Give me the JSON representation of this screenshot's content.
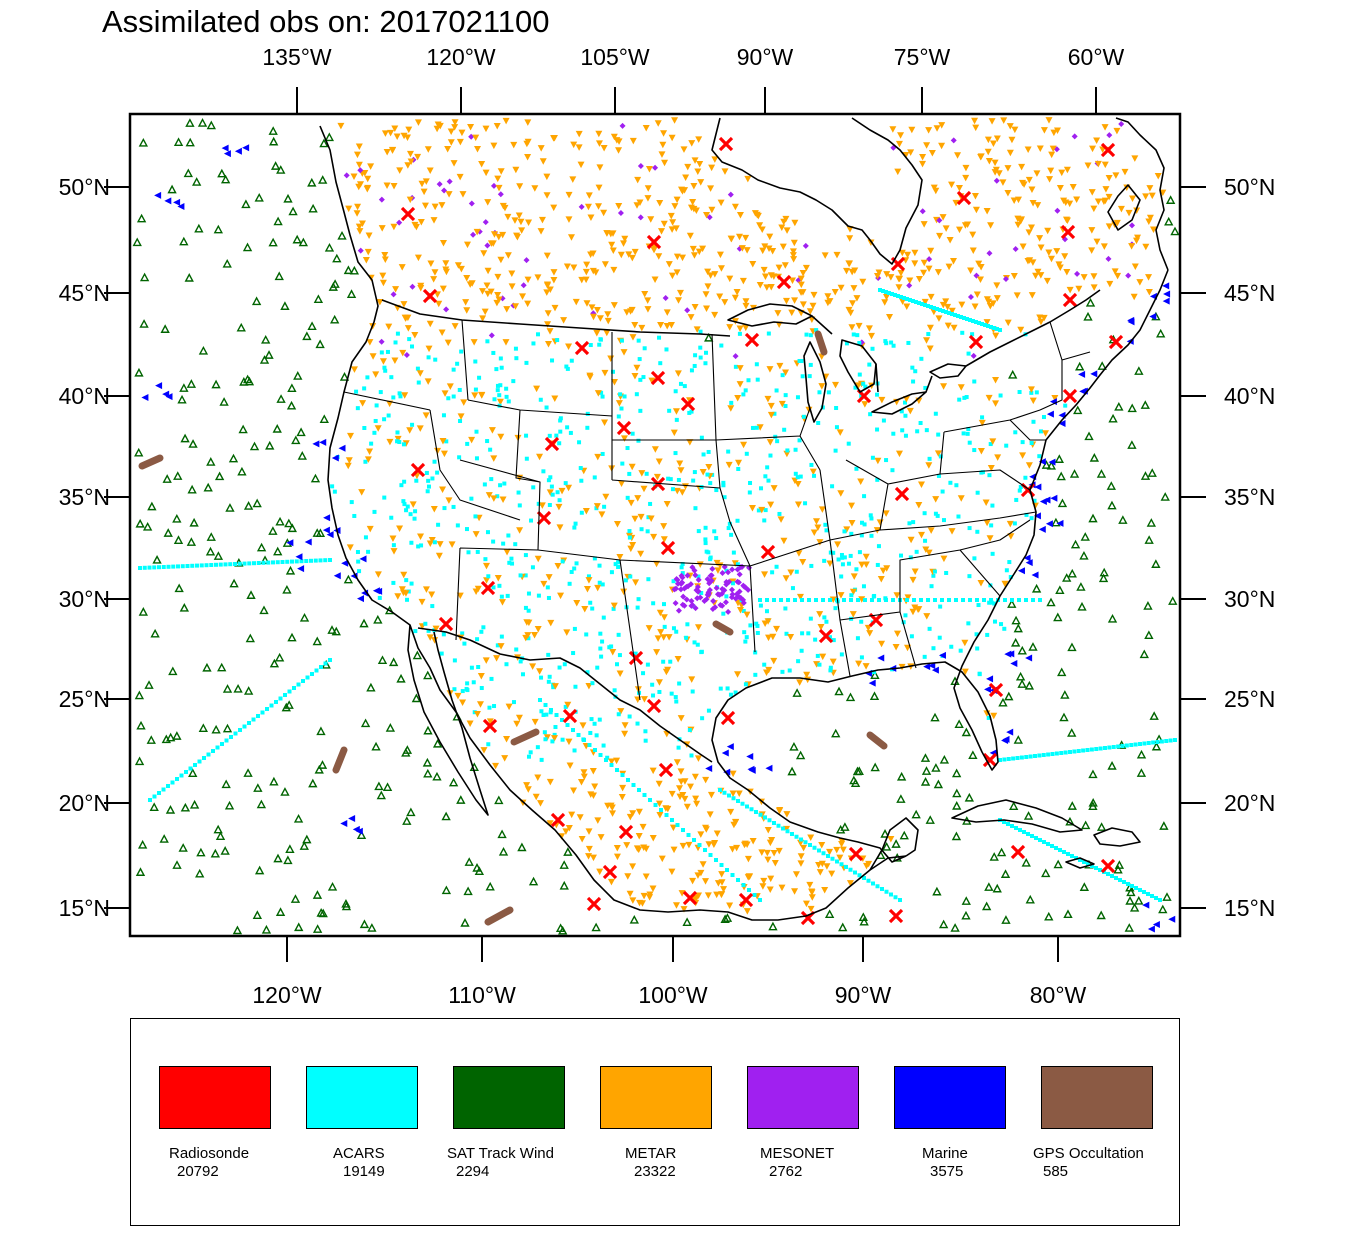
{
  "title": "Assimilated obs on: 2017021100",
  "top_lon_labels": [
    "135°W",
    "120°W",
    "105°W",
    "90°W",
    "75°W",
    "60°W"
  ],
  "bottom_lon_labels": [
    "120°W",
    "110°W",
    "100°W",
    "90°W",
    "80°W"
  ],
  "lat_labels": [
    "50°N",
    "45°N",
    "40°N",
    "35°N",
    "30°N",
    "25°N",
    "20°N",
    "15°N"
  ],
  "colors": {
    "radiosonde": "#ff0000",
    "acars": "#00ffff",
    "sat_track_wind": "#006400",
    "metar": "#ffa500",
    "mesonet": "#a020f0",
    "marine": "#0000ff",
    "gps_occultation": "#8b5a44"
  },
  "legend": [
    {
      "key": "radiosonde",
      "name": "Radiosonde",
      "count": "20792",
      "color": "#ff0000"
    },
    {
      "key": "acars",
      "name": "ACARS",
      "count": "19149",
      "color": "#00ffff"
    },
    {
      "key": "sat_track_wind",
      "name": "SAT Track Wind",
      "count": "2294",
      "color": "#006400"
    },
    {
      "key": "metar",
      "name": "METAR",
      "count": "23322",
      "color": "#ffa500"
    },
    {
      "key": "mesonet",
      "name": "MESONET",
      "count": "2762",
      "color": "#a020f0"
    },
    {
      "key": "marine",
      "name": "Marine",
      "count": "3575",
      "color": "#0000ff"
    },
    {
      "key": "gps_occultation",
      "name": "GPS Occultation",
      "count": "585",
      "color": "#8b5a44"
    }
  ]
}
